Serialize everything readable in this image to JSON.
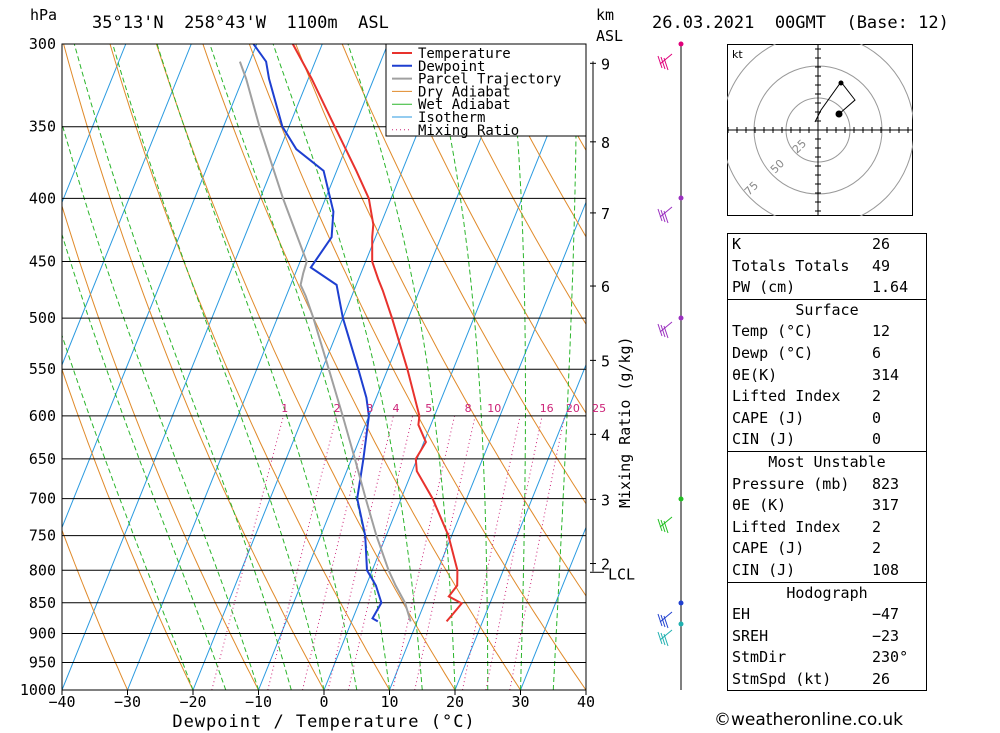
{
  "header": {
    "hpa_label": "hPa",
    "location": "35°13'N  258°43'W  1100m  ASL",
    "km_label": "km",
    "asl_label": "ASL",
    "datetime": "26.03.2021  00GMT  (Base: 12)"
  },
  "chart_data": {
    "type": "line",
    "xlabel": "Dewpoint / Temperature (°C)",
    "ylabel": "hPa",
    "right_label": "Mixing Ratio (g/kg)",
    "xlim": [
      -40,
      40
    ],
    "ylim": [
      1000,
      300
    ],
    "y_scale": "log",
    "skew_deg_per_decade": 76,
    "x_ticks": [
      -40,
      -30,
      -20,
      -10,
      0,
      10,
      20,
      30,
      40
    ],
    "x_tick_labels": [
      "−40",
      "−30",
      "−20",
      "−10",
      "0",
      "10",
      "20",
      "30",
      "40"
    ],
    "pressure_levels": [
      300,
      350,
      400,
      450,
      500,
      550,
      600,
      650,
      700,
      750,
      800,
      850,
      900,
      950,
      1000
    ],
    "km_ticks": [
      {
        "label": "9",
        "p": 311
      },
      {
        "label": "8",
        "p": 360
      },
      {
        "label": "7",
        "p": 411
      },
      {
        "label": "6",
        "p": 471
      },
      {
        "label": "5",
        "p": 541
      },
      {
        "label": "4",
        "p": 621
      },
      {
        "label": "3",
        "p": 701
      },
      {
        "label": "2",
        "p": 790
      }
    ],
    "lcl": {
      "label": "LCL",
      "p": 800
    },
    "mixing_ratio_labels": [
      {
        "label": "1",
        "x": -6
      },
      {
        "label": "2",
        "x": 2
      },
      {
        "label": "3",
        "x": 7
      },
      {
        "label": "4",
        "x": 11
      },
      {
        "label": "5",
        "x": 16
      },
      {
        "label": "8",
        "x": 22
      },
      {
        "label": "10",
        "x": 26
      },
      {
        "label": "16",
        "x": 34
      },
      {
        "label": "20",
        "x": 38
      },
      {
        "label": "25",
        "x": 42
      }
    ],
    "legend": [
      "Temperature",
      "Dewpoint",
      "Parcel Trajectory",
      "Dry Adiabat",
      "Wet Adiabat",
      "Isotherm",
      "Mixing Ratio"
    ],
    "series": [
      {
        "name": "Temperature",
        "color": "#e8322d",
        "points": [
          [
            880,
            14.5
          ],
          [
            868,
            15
          ],
          [
            851,
            15.7
          ],
          [
            840,
            13.3
          ],
          [
            823,
            13.9
          ],
          [
            800,
            13
          ],
          [
            750,
            9.5
          ],
          [
            700,
            4.8
          ],
          [
            665,
            0.7
          ],
          [
            650,
            -0.2
          ],
          [
            630,
            0.3
          ],
          [
            610,
            -1.9
          ],
          [
            600,
            -2.3
          ],
          [
            550,
            -7
          ],
          [
            500,
            -12.5
          ],
          [
            475,
            -15.6
          ],
          [
            465,
            -17
          ],
          [
            450,
            -19
          ],
          [
            430,
            -20.5
          ],
          [
            420,
            -21.1
          ],
          [
            400,
            -23.4
          ],
          [
            380,
            -27
          ],
          [
            350,
            -33
          ],
          [
            320,
            -39.5
          ],
          [
            300,
            -44.5
          ]
        ]
      },
      {
        "name": "Dewpoint",
        "color": "#1e3fd0",
        "points": [
          [
            880,
            4
          ],
          [
            875,
            3
          ],
          [
            850,
            3.4
          ],
          [
            823,
            1.5
          ],
          [
            800,
            -0.8
          ],
          [
            750,
            -3.2
          ],
          [
            700,
            -6.7
          ],
          [
            650,
            -8.2
          ],
          [
            600,
            -10
          ],
          [
            580,
            -11.5
          ],
          [
            550,
            -14.5
          ],
          [
            500,
            -20
          ],
          [
            470,
            -23
          ],
          [
            455,
            -28
          ],
          [
            430,
            -26.7
          ],
          [
            410,
            -28
          ],
          [
            380,
            -32
          ],
          [
            365,
            -37.5
          ],
          [
            350,
            -41
          ],
          [
            320,
            -46
          ],
          [
            310,
            -47.5
          ],
          [
            300,
            -50.5
          ]
        ]
      },
      {
        "name": "Parcel Trajectory",
        "color": "#a0a0a0",
        "points": [
          [
            880,
            9
          ],
          [
            850,
            7
          ],
          [
            823,
            4.5
          ],
          [
            800,
            2.5
          ],
          [
            750,
            -1.5
          ],
          [
            700,
            -5.4
          ],
          [
            650,
            -9.5
          ],
          [
            600,
            -14
          ],
          [
            550,
            -19
          ],
          [
            500,
            -24.5
          ],
          [
            480,
            -27
          ],
          [
            470,
            -28.5
          ],
          [
            460,
            -28.8
          ],
          [
            450,
            -29
          ],
          [
            400,
            -36.5
          ],
          [
            350,
            -44.5
          ],
          [
            320,
            -49.5
          ],
          [
            310,
            -51.5
          ]
        ]
      }
    ]
  },
  "hodograph": {
    "unit": "kt",
    "ring_labels": [
      "25",
      "50",
      "75"
    ]
  },
  "indices": {
    "k": {
      "label": "K",
      "value": "26"
    },
    "tt": {
      "label": "Totals Totals",
      "value": "49"
    },
    "pw": {
      "label": "PW (cm)",
      "value": "1.64"
    }
  },
  "surface": {
    "title": "Surface",
    "temp": {
      "label": "Temp (°C)",
      "value": "12"
    },
    "dewp": {
      "label": "Dewp (°C)",
      "value": "6"
    },
    "theta": {
      "label": "θE(K)",
      "value": "314"
    },
    "li": {
      "label": "Lifted Index",
      "value": "2"
    },
    "cape": {
      "label": "CAPE (J)",
      "value": "0"
    },
    "cin": {
      "label": "CIN (J)",
      "value": "0"
    }
  },
  "most_unstable": {
    "title": "Most Unstable",
    "pressure": {
      "label": "Pressure (mb)",
      "value": "823"
    },
    "theta": {
      "label": "θE (K)",
      "value": "317"
    },
    "li": {
      "label": "Lifted Index",
      "value": "2"
    },
    "cape": {
      "label": "CAPE (J)",
      "value": "2"
    },
    "cin": {
      "label": "CIN (J)",
      "value": "108"
    }
  },
  "hodo_table": {
    "title": "Hodograph",
    "eh": {
      "label": "EH",
      "value": "−47"
    },
    "sreh": {
      "label": "SREH",
      "value": "−23"
    },
    "stmdir": {
      "label": "StmDir",
      "value": "230°"
    },
    "stmspd": {
      "label": "StmSpd (kt)",
      "value": "26"
    }
  },
  "colors": {
    "temperature": "#e8322d",
    "dewpoint": "#1e3fd0",
    "parcel": "#a0a0a0",
    "dry_adiabat": "#e08a2a",
    "wet_adiabat": "#2bb52b",
    "isotherm": "#2a9ae0",
    "mixing_ratio": "#cc2277"
  },
  "credit": "©weatheronline.co.uk"
}
